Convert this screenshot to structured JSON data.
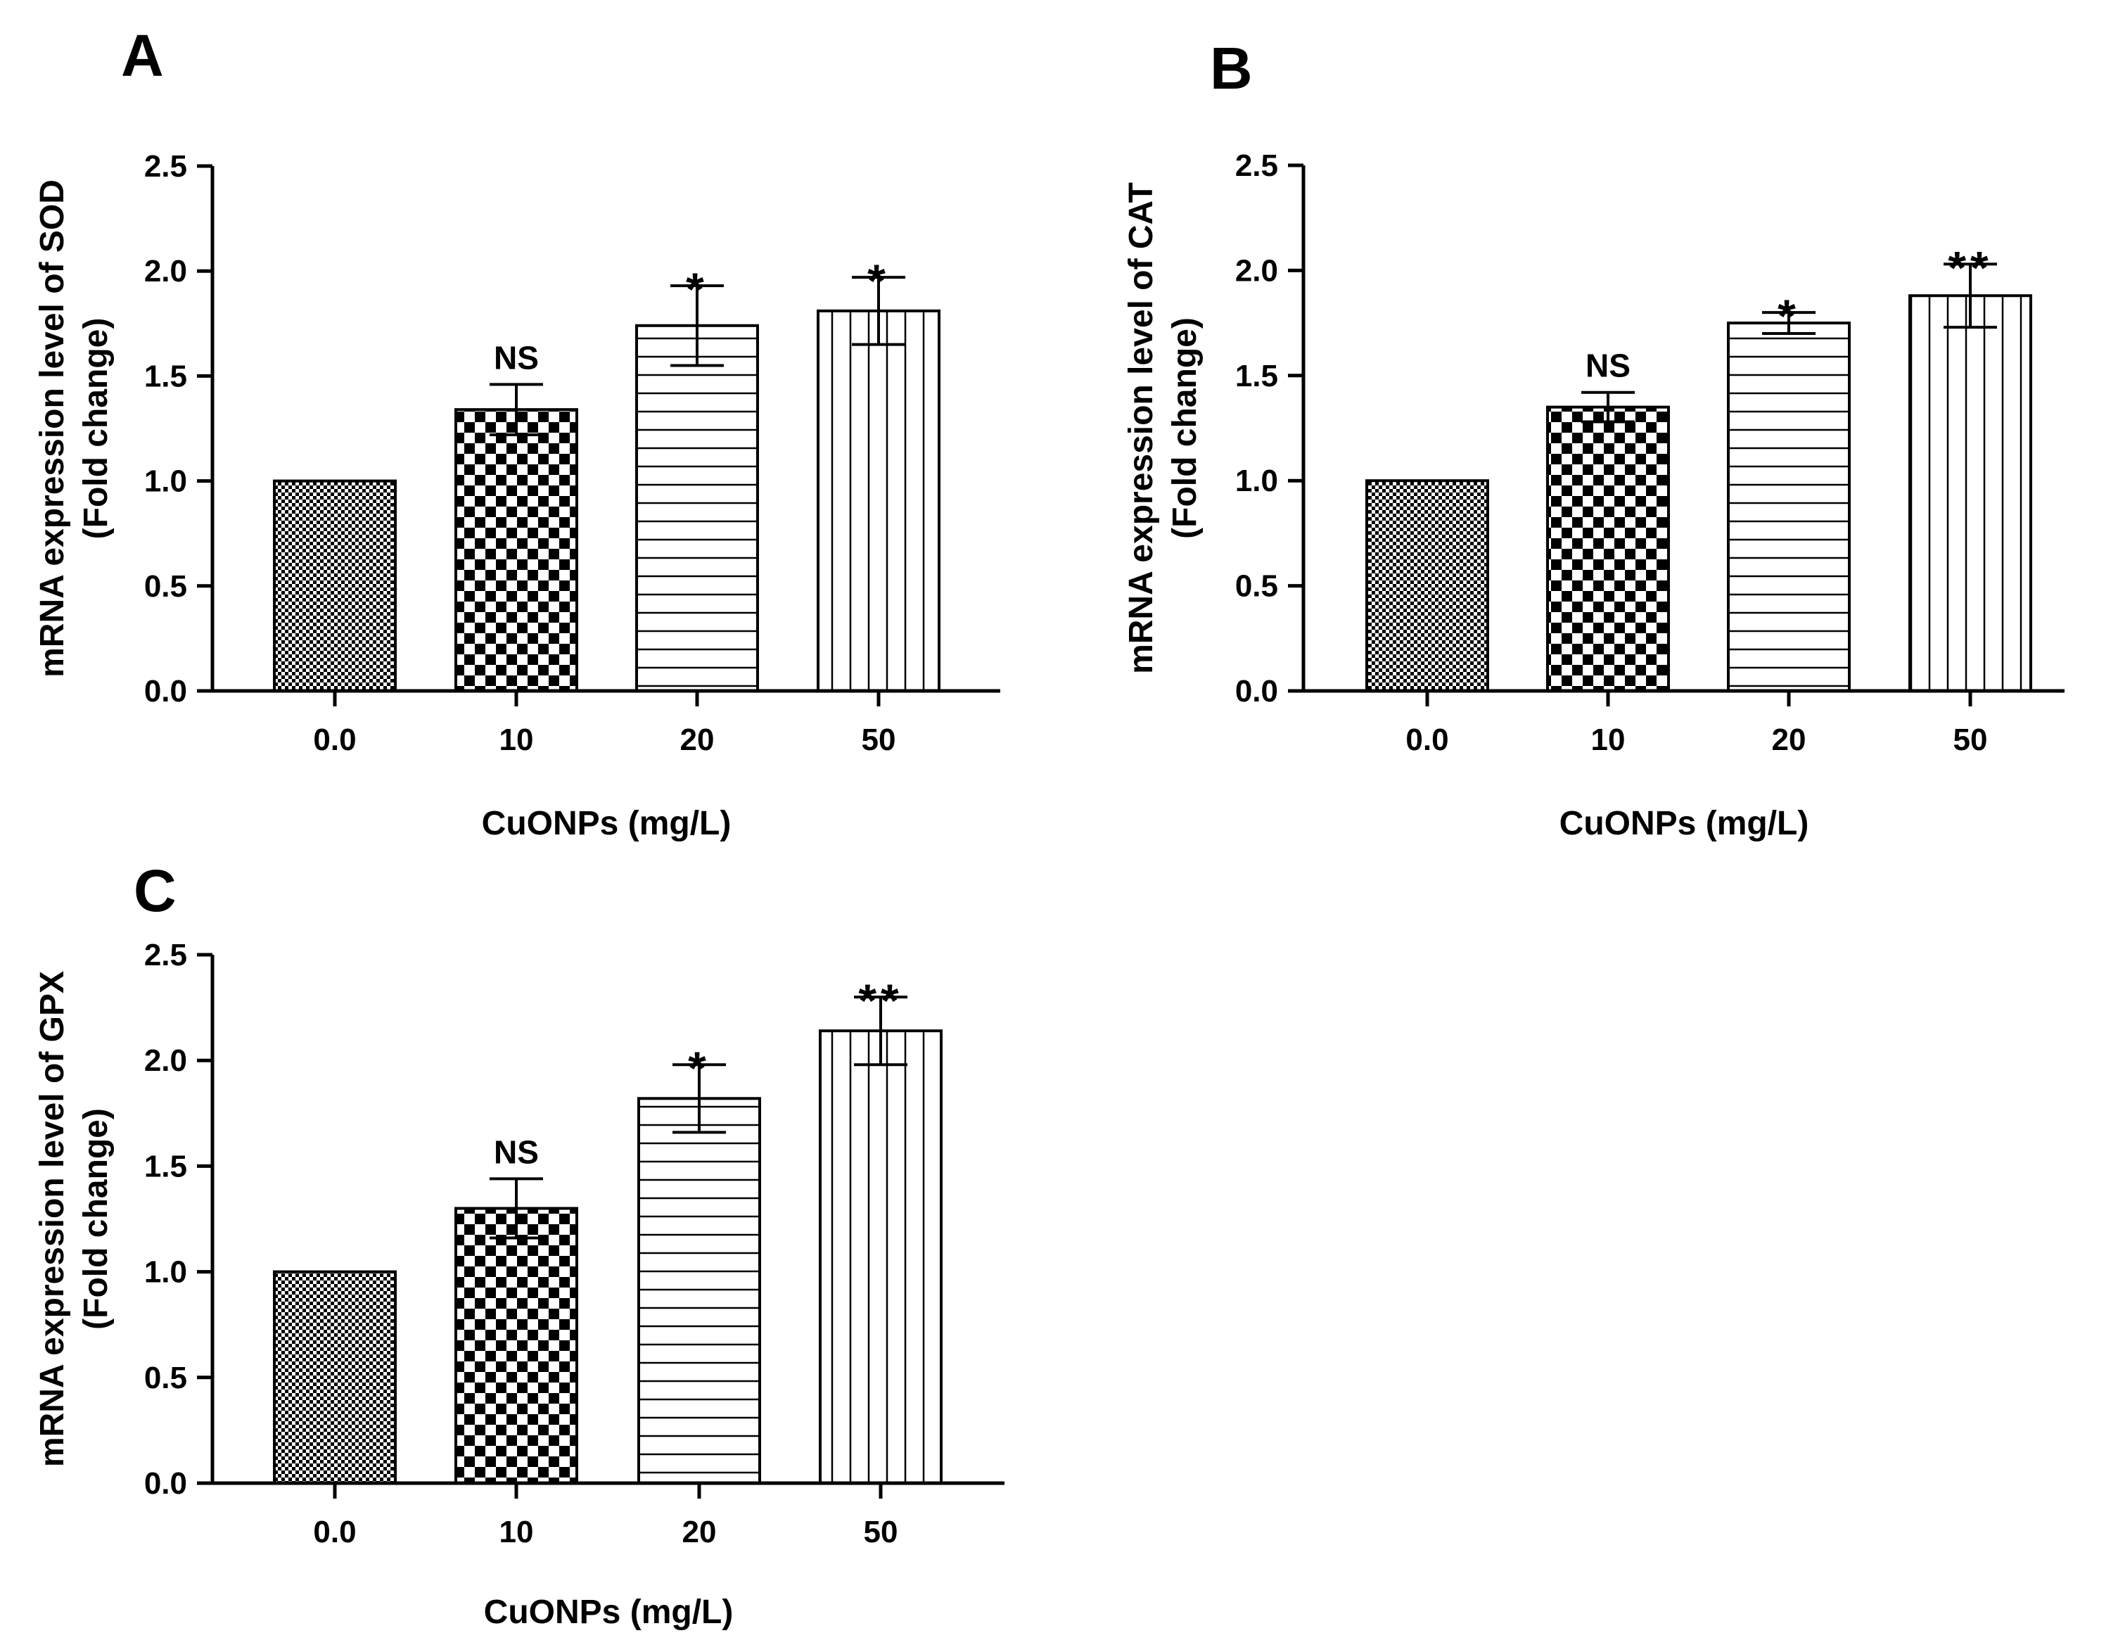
{
  "chart_data": [
    {
      "type": "bar",
      "panel": "A",
      "categories": [
        "0.0",
        "10",
        "20",
        "50"
      ],
      "values": [
        1.0,
        1.34,
        1.74,
        1.81
      ],
      "errors": [
        0,
        0.12,
        0.19,
        0.16
      ],
      "significance": [
        "",
        "NS",
        "*",
        "*"
      ],
      "xlabel": "CuONPs (mg/L)",
      "ylabel": [
        "mRNA expression level of SOD",
        "(Fold change)"
      ],
      "ylim": [
        0,
        2.5
      ],
      "yticks": [
        "0.0",
        "0.5",
        "1.0",
        "1.5",
        "2.0",
        "2.5"
      ],
      "grid": false,
      "patterns": [
        "fine-checker",
        "checker",
        "horizontal-lines",
        "vertical-lines"
      ]
    },
    {
      "type": "bar",
      "panel": "B",
      "categories": [
        "0.0",
        "10",
        "20",
        "50"
      ],
      "values": [
        1.0,
        1.35,
        1.75,
        1.88
      ],
      "errors": [
        0,
        0.07,
        0.05,
        0.15
      ],
      "significance": [
        "",
        "NS",
        "*",
        "**"
      ],
      "xlabel": "CuONPs (mg/L)",
      "ylabel": [
        "mRNA expression level of CAT",
        "(Fold change)"
      ],
      "ylim": [
        0,
        2.5
      ],
      "yticks": [
        "0.0",
        "0.5",
        "1.0",
        "1.5",
        "2.0",
        "2.5"
      ],
      "grid": false,
      "patterns": [
        "fine-checker",
        "checker",
        "horizontal-lines",
        "vertical-lines"
      ]
    },
    {
      "type": "bar",
      "panel": "C",
      "categories": [
        "0.0",
        "10",
        "20",
        "50"
      ],
      "values": [
        1.0,
        1.3,
        1.82,
        2.14
      ],
      "errors": [
        0,
        0.14,
        0.16,
        0.16
      ],
      "significance": [
        "",
        "NS",
        "*",
        "**"
      ],
      "xlabel": "CuONPs (mg/L)",
      "ylabel": [
        "mRNA expression level of GPX",
        "(Fold change)"
      ],
      "ylim": [
        0,
        2.5
      ],
      "yticks": [
        "0.0",
        "0.5",
        "1.0",
        "1.5",
        "2.0",
        "2.5"
      ],
      "grid": false,
      "patterns": [
        "fine-checker",
        "checker",
        "horizontal-lines",
        "vertical-lines"
      ]
    }
  ]
}
